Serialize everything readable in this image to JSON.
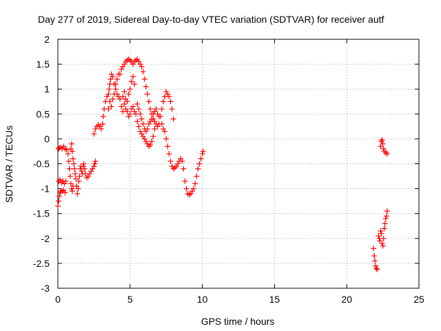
{
  "chart_data": {
    "type": "scatter",
    "title": "Day 277 of 2019, Sidereal Day-to-day VTEC variation (SDTVAR) for receiver autf",
    "xlabel": "GPS time / hours",
    "ylabel": "SDTVAR / TECUs",
    "xlim": [
      0,
      25
    ],
    "ylim": [
      -3,
      2
    ],
    "xticks": [
      0,
      5,
      10,
      15,
      20,
      25
    ],
    "yticks": [
      -3,
      -2.5,
      -2,
      -1.5,
      -1,
      -0.5,
      0,
      0.5,
      1,
      1.5,
      2
    ],
    "ytick_labels": [
      "-3",
      "-2.5",
      "-2",
      "-1.5",
      "-1",
      "-0.5",
      "0",
      "0.5",
      "1",
      "1.5",
      "2"
    ],
    "grid": true,
    "marker": "plus",
    "color": "#ff0000",
    "series": [
      {
        "points": [
          [
            0.0,
            -1.35
          ],
          [
            0.05,
            -1.25
          ],
          [
            0.1,
            -1.15
          ],
          [
            0.15,
            -1.08
          ],
          [
            0.2,
            -1.05
          ],
          [
            0.3,
            -1.05
          ],
          [
            0.4,
            -1.03
          ],
          [
            0.5,
            -1.08
          ],
          [
            0.05,
            -0.2
          ],
          [
            0.1,
            -0.18
          ],
          [
            0.2,
            -0.17
          ],
          [
            0.3,
            -0.2
          ],
          [
            0.4,
            -0.15
          ],
          [
            0.5,
            -0.2
          ],
          [
            0.6,
            -0.22
          ],
          [
            0.05,
            -0.85
          ],
          [
            0.15,
            -0.82
          ],
          [
            0.25,
            -0.88
          ],
          [
            0.35,
            -0.85
          ],
          [
            0.45,
            -0.9
          ],
          [
            0.55,
            -0.85
          ],
          [
            0.7,
            -0.3
          ],
          [
            0.75,
            -0.45
          ],
          [
            0.8,
            -0.6
          ],
          [
            0.85,
            -0.75
          ],
          [
            0.9,
            -0.9
          ],
          [
            0.95,
            -1.0
          ],
          [
            1.0,
            -1.05
          ],
          [
            1.05,
            -0.95
          ],
          [
            0.9,
            -0.2
          ],
          [
            0.95,
            -0.1
          ],
          [
            1.0,
            -0.25
          ],
          [
            1.05,
            -0.4
          ],
          [
            1.1,
            -0.5
          ],
          [
            1.15,
            -0.6
          ],
          [
            1.2,
            -0.7
          ],
          [
            1.25,
            -0.8
          ],
          [
            1.3,
            -0.95
          ],
          [
            1.35,
            -1.1
          ],
          [
            1.4,
            -1.0
          ],
          [
            1.45,
            -0.85
          ],
          [
            1.5,
            -0.75
          ],
          [
            1.55,
            -0.6
          ],
          [
            1.6,
            -0.55
          ],
          [
            1.65,
            -0.65
          ],
          [
            1.7,
            -0.7
          ],
          [
            1.75,
            -0.55
          ],
          [
            1.8,
            -0.5
          ],
          [
            1.85,
            -0.6
          ],
          [
            1.9,
            -0.7
          ],
          [
            2.0,
            -0.78
          ],
          [
            2.1,
            -0.75
          ],
          [
            2.2,
            -0.7
          ],
          [
            2.3,
            -0.65
          ],
          [
            2.4,
            -0.6
          ],
          [
            2.5,
            -0.55
          ],
          [
            2.55,
            -0.5
          ],
          [
            2.6,
            -0.45
          ],
          [
            2.5,
            0.1
          ],
          [
            2.6,
            0.2
          ],
          [
            2.7,
            0.25
          ],
          [
            2.8,
            0.28
          ],
          [
            2.9,
            0.25
          ],
          [
            3.0,
            0.2
          ],
          [
            3.1,
            0.3
          ],
          [
            3.15,
            0.45
          ],
          [
            3.2,
            0.6
          ],
          [
            3.3,
            0.75
          ],
          [
            3.4,
            0.85
          ],
          [
            3.5,
            0.9
          ],
          [
            3.55,
            1.0
          ],
          [
            3.6,
            1.1
          ],
          [
            3.65,
            1.2
          ],
          [
            3.7,
            1.3
          ],
          [
            3.5,
            0.6
          ],
          [
            3.6,
            0.75
          ],
          [
            3.7,
            0.65
          ],
          [
            3.8,
            0.8
          ],
          [
            3.9,
            0.9
          ],
          [
            4.0,
            1.1
          ],
          [
            4.1,
            1.2
          ],
          [
            4.2,
            1.3
          ],
          [
            3.8,
            1.25
          ],
          [
            3.9,
            1.1
          ],
          [
            4.0,
            1.0
          ],
          [
            4.1,
            0.9
          ],
          [
            4.2,
            0.85
          ],
          [
            4.3,
            0.8
          ],
          [
            4.4,
            0.65
          ],
          [
            4.5,
            0.55
          ],
          [
            4.3,
            1.3
          ],
          [
            4.4,
            1.4
          ],
          [
            4.5,
            1.45
          ],
          [
            4.6,
            1.5
          ],
          [
            4.7,
            1.55
          ],
          [
            4.8,
            1.58
          ],
          [
            4.9,
            1.6
          ],
          [
            5.0,
            1.58
          ],
          [
            5.1,
            1.55
          ],
          [
            5.2,
            1.5
          ],
          [
            5.3,
            1.55
          ],
          [
            5.4,
            1.58
          ],
          [
            5.5,
            1.6
          ],
          [
            5.6,
            1.55
          ],
          [
            5.7,
            1.5
          ],
          [
            5.8,
            1.45
          ],
          [
            5.9,
            1.35
          ],
          [
            6.0,
            1.2
          ],
          [
            6.1,
            1.05
          ],
          [
            6.2,
            0.9
          ],
          [
            6.3,
            0.75
          ],
          [
            6.4,
            0.6
          ],
          [
            6.5,
            0.5
          ],
          [
            6.6,
            0.4
          ],
          [
            4.6,
            0.7
          ],
          [
            4.7,
            0.6
          ],
          [
            4.8,
            0.75
          ],
          [
            4.9,
            0.9
          ],
          [
            5.0,
            1.0
          ],
          [
            5.1,
            1.15
          ],
          [
            5.2,
            1.25
          ],
          [
            5.3,
            1.1
          ],
          [
            4.5,
            0.85
          ],
          [
            4.6,
            0.95
          ],
          [
            4.7,
            0.8
          ],
          [
            4.8,
            0.55
          ],
          [
            4.9,
            0.45
          ],
          [
            5.0,
            0.5
          ],
          [
            5.1,
            0.6
          ],
          [
            5.2,
            0.65
          ],
          [
            5.3,
            0.55
          ],
          [
            5.4,
            0.5
          ],
          [
            5.5,
            0.35
          ],
          [
            5.6,
            0.25
          ],
          [
            5.7,
            0.15
          ],
          [
            5.8,
            0.1
          ],
          [
            5.9,
            0.05
          ],
          [
            6.0,
            0.0
          ],
          [
            6.1,
            -0.05
          ],
          [
            6.2,
            -0.1
          ],
          [
            6.3,
            -0.15
          ],
          [
            6.4,
            -0.12
          ],
          [
            6.5,
            -0.05
          ],
          [
            6.6,
            0.05
          ],
          [
            6.7,
            0.2
          ],
          [
            5.5,
            0.7
          ],
          [
            5.6,
            0.6
          ],
          [
            5.7,
            0.5
          ],
          [
            5.8,
            0.4
          ],
          [
            5.9,
            0.3
          ],
          [
            6.0,
            0.2
          ],
          [
            6.1,
            0.15
          ],
          [
            6.2,
            0.2
          ],
          [
            6.3,
            0.3
          ],
          [
            6.4,
            0.35
          ],
          [
            6.5,
            0.4
          ],
          [
            6.6,
            0.5
          ],
          [
            6.7,
            0.55
          ],
          [
            6.8,
            0.6
          ],
          [
            6.9,
            0.5
          ],
          [
            7.0,
            0.45
          ],
          [
            6.7,
            0.35
          ],
          [
            6.8,
            0.3
          ],
          [
            6.9,
            0.25
          ],
          [
            7.0,
            0.3
          ],
          [
            7.1,
            0.45
          ],
          [
            7.2,
            0.6
          ],
          [
            7.3,
            0.75
          ],
          [
            7.4,
            0.85
          ],
          [
            7.5,
            0.95
          ],
          [
            7.6,
            0.9
          ],
          [
            7.7,
            0.85
          ],
          [
            7.8,
            0.75
          ],
          [
            7.9,
            0.6
          ],
          [
            8.0,
            0.4
          ],
          [
            7.2,
            0.3
          ],
          [
            7.3,
            0.2
          ],
          [
            7.4,
            0.15
          ],
          [
            7.5,
            0.0
          ],
          [
            7.6,
            -0.15
          ],
          [
            7.7,
            -0.3
          ],
          [
            7.8,
            -0.45
          ],
          [
            7.9,
            -0.55
          ],
          [
            8.0,
            -0.6
          ],
          [
            8.1,
            -0.58
          ],
          [
            8.2,
            -0.55
          ],
          [
            8.3,
            -0.5
          ],
          [
            8.4,
            -0.45
          ],
          [
            8.5,
            -0.4
          ],
          [
            8.6,
            -0.45
          ],
          [
            8.7,
            -0.6
          ],
          [
            8.8,
            -0.85
          ],
          [
            8.9,
            -1.0
          ],
          [
            9.0,
            -1.1
          ],
          [
            9.1,
            -1.12
          ],
          [
            9.2,
            -1.1
          ],
          [
            9.3,
            -1.05
          ],
          [
            9.4,
            -1.0
          ],
          [
            9.5,
            -0.9
          ],
          [
            9.6,
            -0.75
          ],
          [
            9.7,
            -0.6
          ],
          [
            9.8,
            -0.5
          ],
          [
            9.9,
            -0.4
          ],
          [
            10.0,
            -0.3
          ],
          [
            10.05,
            -0.25
          ],
          [
            21.85,
            -2.2
          ],
          [
            21.9,
            -2.35
          ],
          [
            21.95,
            -2.45
          ],
          [
            22.0,
            -2.55
          ],
          [
            22.05,
            -2.6
          ],
          [
            22.1,
            -2.62
          ],
          [
            22.2,
            -1.95
          ],
          [
            22.25,
            -2.0
          ],
          [
            22.3,
            -2.05
          ],
          [
            22.35,
            -1.85
          ],
          [
            22.4,
            -1.9
          ],
          [
            22.45,
            -2.1
          ],
          [
            22.5,
            -2.15
          ],
          [
            22.55,
            -2.0
          ],
          [
            22.6,
            -1.8
          ],
          [
            22.65,
            -1.7
          ],
          [
            22.7,
            -1.6
          ],
          [
            22.75,
            -1.55
          ],
          [
            22.8,
            -1.45
          ],
          [
            22.35,
            -0.15
          ],
          [
            22.4,
            -0.05
          ],
          [
            22.45,
            -0.02
          ],
          [
            22.5,
            -0.1
          ],
          [
            22.55,
            -0.2
          ],
          [
            22.6,
            -0.25
          ],
          [
            22.7,
            -0.28
          ],
          [
            22.8,
            -0.3
          ]
        ]
      }
    ]
  }
}
